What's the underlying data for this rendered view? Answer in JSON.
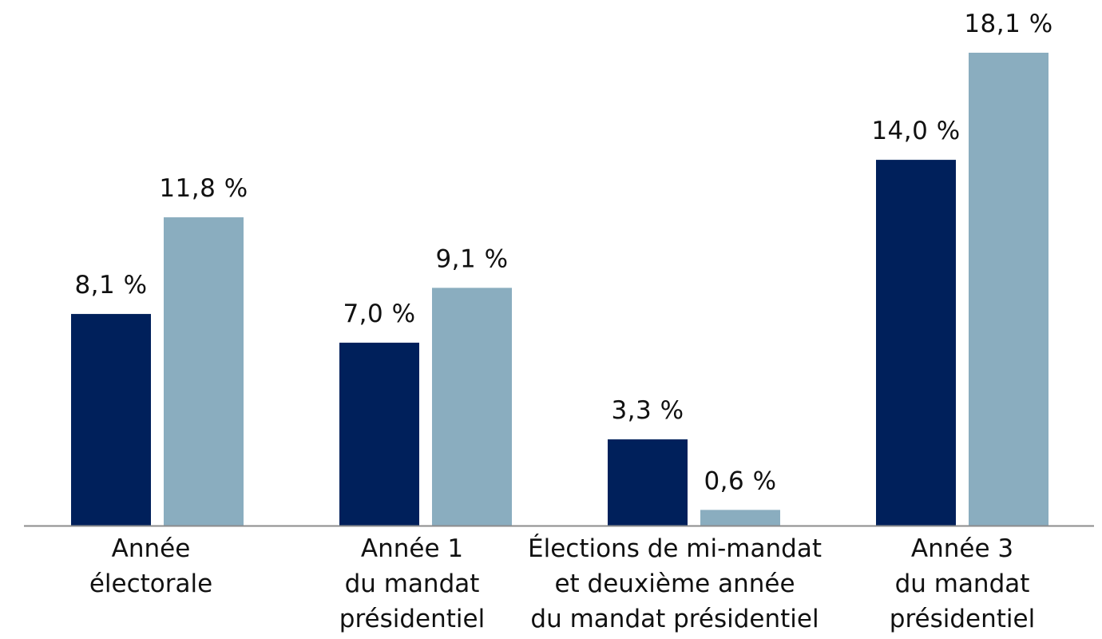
{
  "chart_data": {
    "type": "bar",
    "categories": [
      [
        "Année",
        "électorale"
      ],
      [
        "Année 1",
        "du mandat",
        "présidentiel"
      ],
      [
        "Élections de mi-mandat",
        "et deuxième année",
        "du mandat présidentiel"
      ],
      [
        "Année 3",
        "du mandat",
        "présidentiel"
      ]
    ],
    "series": [
      {
        "color": "#00205b",
        "values": [
          8.1,
          7.0,
          3.3,
          14.0
        ],
        "labels": [
          "8,1 %",
          "7,0 %",
          "3,3 %",
          "14,0 %"
        ]
      },
      {
        "color": "#8aadbf",
        "values": [
          11.8,
          9.1,
          0.6,
          18.1
        ],
        "labels": [
          "11,8 %",
          "9,1 %",
          "0,6 %",
          "18,1 %"
        ]
      }
    ],
    "ylim": [
      0,
      18.1
    ],
    "grid": false,
    "legend": "none",
    "axis_color": "#8c8c8c"
  }
}
